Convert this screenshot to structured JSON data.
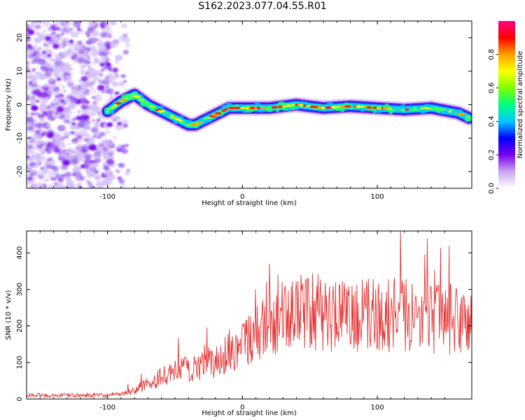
{
  "title": "S162.2023.077.04.55.R01",
  "chart_data": [
    {
      "type": "heatmap",
      "xlabel": "Height of straight line (km)",
      "ylabel": "Frequency (Hz)",
      "xlim": [
        -160,
        170
      ],
      "ylim": [
        -25,
        25
      ],
      "xticks": [
        -100,
        0,
        100
      ],
      "xtick_labels": [
        "-100",
        "0",
        "100"
      ],
      "yticks": [
        -20,
        -10,
        0,
        10,
        20
      ],
      "ytick_labels": [
        "-20",
        "-10",
        "0",
        "10",
        "20"
      ],
      "colorbar": {
        "label": "Normalized spectral amplitude",
        "range": [
          0,
          1
        ],
        "ticks": [
          0.0,
          0.2,
          0.4,
          0.6,
          0.8
        ],
        "tick_labels": [
          "0.0",
          "0.2",
          "0.4",
          "0.6",
          "0.8"
        ],
        "colors": [
          "#ffffff",
          "#c7a6f2",
          "#7a00ee",
          "#0000ff",
          "#00c8ff",
          "#00ff80",
          "#7fff00",
          "#ffff00",
          "#ffa000",
          "#ff0000",
          "#ff0080"
        ]
      },
      "noise_region_x": [
        -160,
        -100
      ],
      "ridge": {
        "x": [
          -100,
          -90,
          -80,
          -70,
          -60,
          -50,
          -40,
          -35,
          -30,
          -20,
          -10,
          0,
          20,
          40,
          60,
          80,
          100,
          120,
          140,
          160,
          168
        ],
        "y": [
          -2,
          1,
          3,
          0,
          -2,
          -4,
          -6,
          -6,
          -5,
          -3,
          -1,
          -1,
          -1,
          0,
          -1,
          -0.5,
          -1,
          -1.5,
          -1,
          -2.5,
          -4
        ]
      },
      "grid": false
    },
    {
      "type": "line",
      "xlabel": "Height of straight line (km)",
      "ylabel": "SNR (10 * v/v)",
      "xlim": [
        -160,
        170
      ],
      "ylim": [
        0,
        460
      ],
      "xticks": [
        -100,
        0,
        100
      ],
      "xtick_labels": [
        "-100",
        "0",
        "100"
      ],
      "yticks": [
        0,
        100,
        200,
        300,
        400
      ],
      "ytick_labels": [
        "0",
        "100",
        "200",
        "300",
        "400"
      ],
      "color": "#e53333",
      "trend": {
        "x": [
          -160,
          -100,
          -90,
          -80,
          -60,
          -40,
          -20,
          -5,
          10,
          25,
          40,
          60,
          80,
          100,
          120,
          140,
          160,
          170
        ],
        "y": [
          10,
          10,
          12,
          25,
          60,
          85,
          100,
          140,
          180,
          215,
          240,
          235,
          225,
          230,
          235,
          225,
          215,
          205
        ]
      },
      "grid": false
    }
  ]
}
